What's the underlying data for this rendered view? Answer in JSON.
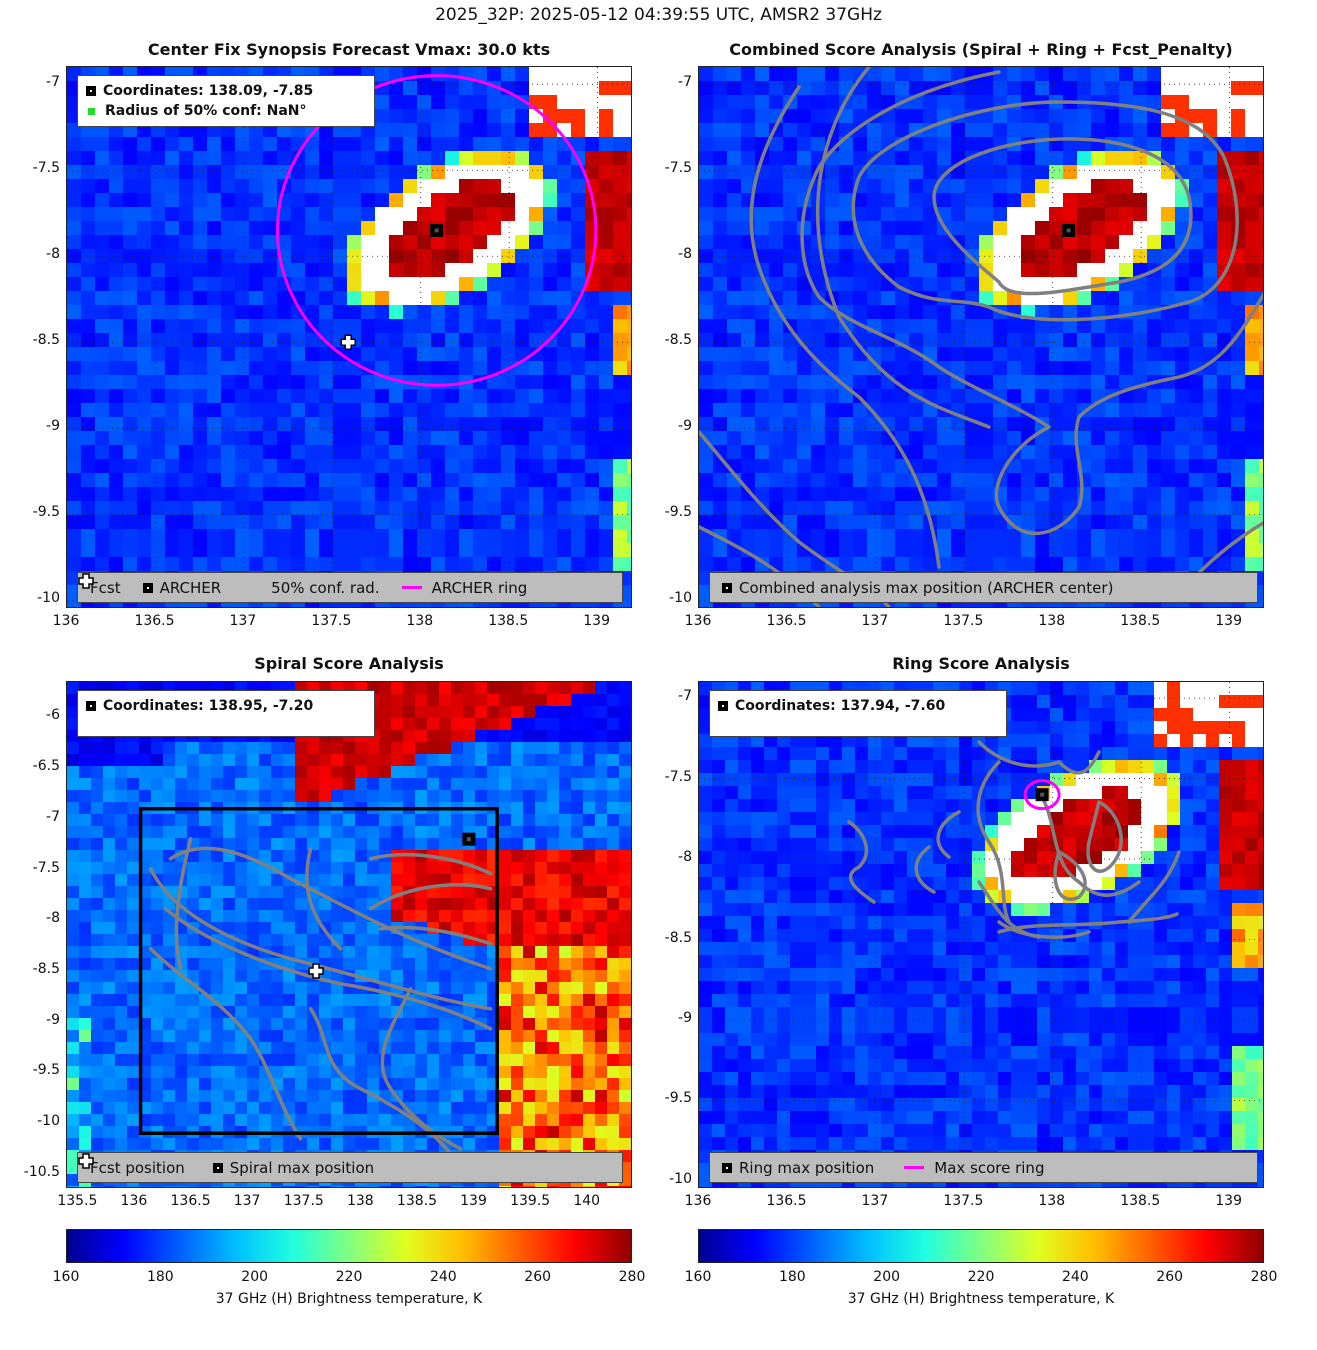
{
  "main_title": "2025_32P: 2025-05-12 04:39:55 UTC, AMSR2 37GHz",
  "colormap": [
    "#00008f",
    "#0000ff",
    "#0060ff",
    "#00bfff",
    "#20ffdf",
    "#80ff80",
    "#dfff20",
    "#ffbf00",
    "#ff6000",
    "#ff0000",
    "#8f0000"
  ],
  "contour_color": "#808080",
  "ring_color": "#ff00ff",
  "panels": {
    "synopsis": {
      "title": "Center Fix Synopsis     Forecast Vmax: 30.0 kts",
      "legend_coords": "Coordinates: 138.09, -7.85",
      "legend_radius": "Radius of 50% conf: NaN°",
      "bottom_fcst": "Fcst",
      "bottom_archer": "ARCHER",
      "bottom_conf": "50% conf. rad.",
      "bottom_ring": "ARCHER ring"
    },
    "combined": {
      "title": "Combined Score Analysis (Spiral + Ring + Fcst_Penalty)",
      "bottom_max": "Combined analysis max position (ARCHER center)"
    },
    "spiral": {
      "title": "Spiral Score Analysis",
      "legend_coords": "Coordinates: 138.95, -7.20",
      "bottom_fcst": "Fcst position",
      "bottom_max": "Spiral max position"
    },
    "ring": {
      "title": "Ring Score Analysis",
      "legend_coords": "Coordinates: 137.94, -7.60",
      "bottom_max": "Ring max position",
      "bottom_ring": "Max score ring"
    }
  },
  "chart_data": [
    {
      "type": "heatmap",
      "title": "Center Fix Synopsis     Forecast Vmax: 30.0 kts",
      "xlim": [
        136,
        139.2
      ],
      "ylim": [
        -10.05,
        -6.9
      ],
      "x_ticks": [
        "136",
        "136.5",
        "137",
        "137.5",
        "138",
        "138.5",
        "139"
      ],
      "y_ticks": [
        "-7",
        "-7.5",
        "-8",
        "-8.5",
        "-9",
        "-9.5",
        "-10"
      ],
      "archer_center": [
        138.09,
        -7.85
      ],
      "fcst_position": [
        137.59,
        -8.5
      ],
      "archer_ring_center": [
        138.09,
        -7.85
      ],
      "archer_ring_radius_deg": 0.9,
      "radius_50pct_conf": "NaN"
    },
    {
      "type": "heatmap",
      "title": "Combined Score Analysis (Spiral + Ring + Fcst_Penalty)",
      "xlim": [
        136,
        139.2
      ],
      "ylim": [
        -10.05,
        -6.9
      ],
      "x_ticks": [
        "136",
        "136.5",
        "137",
        "137.5",
        "138",
        "138.5",
        "139"
      ],
      "y_ticks": [
        "-7",
        "-7.5",
        "-8",
        "-8.5",
        "-9",
        "-9.5",
        "-10"
      ],
      "combined_max_position": [
        138.09,
        -7.85
      ]
    },
    {
      "type": "heatmap",
      "title": "Spiral Score Analysis",
      "xlim": [
        135.4,
        140.4
      ],
      "ylim": [
        -10.65,
        -5.65
      ],
      "x_ticks": [
        "135.5",
        "136",
        "136.5",
        "137",
        "137.5",
        "138",
        "138.5",
        "139",
        "139.5",
        "140"
      ],
      "y_ticks": [
        "-6",
        "-6.5",
        "-7",
        "-7.5",
        "-8",
        "-8.5",
        "-9",
        "-9.5",
        "-10",
        "-10.5"
      ],
      "spiral_max_position": [
        138.95,
        -7.2
      ],
      "fcst_position": [
        137.6,
        -8.5
      ],
      "search_box": {
        "x": [
          136.05,
          139.2
        ],
        "y": [
          -10.1,
          -6.9
        ]
      }
    },
    {
      "type": "heatmap",
      "title": "Ring Score Analysis",
      "xlim": [
        136,
        139.2
      ],
      "ylim": [
        -10.05,
        -6.9
      ],
      "x_ticks": [
        "136",
        "136.5",
        "137",
        "137.5",
        "138",
        "138.5",
        "139"
      ],
      "y_ticks": [
        "-7",
        "-7.5",
        "-8",
        "-8.5",
        "-9",
        "-9.5",
        "-10"
      ],
      "ring_max_position": [
        137.94,
        -7.6
      ],
      "max_score_ring_radius_deg": 0.1
    }
  ],
  "colorbars": [
    {
      "ticks": [
        "160",
        "180",
        "200",
        "220",
        "240",
        "260",
        "280"
      ],
      "label": "37 GHz (H) Brightness temperature, K",
      "range": [
        160,
        280
      ]
    },
    {
      "ticks": [
        "160",
        "180",
        "200",
        "220",
        "240",
        "260",
        "280"
      ],
      "label": "37 GHz (H) Brightness temperature, K",
      "range": [
        160,
        280
      ]
    }
  ]
}
